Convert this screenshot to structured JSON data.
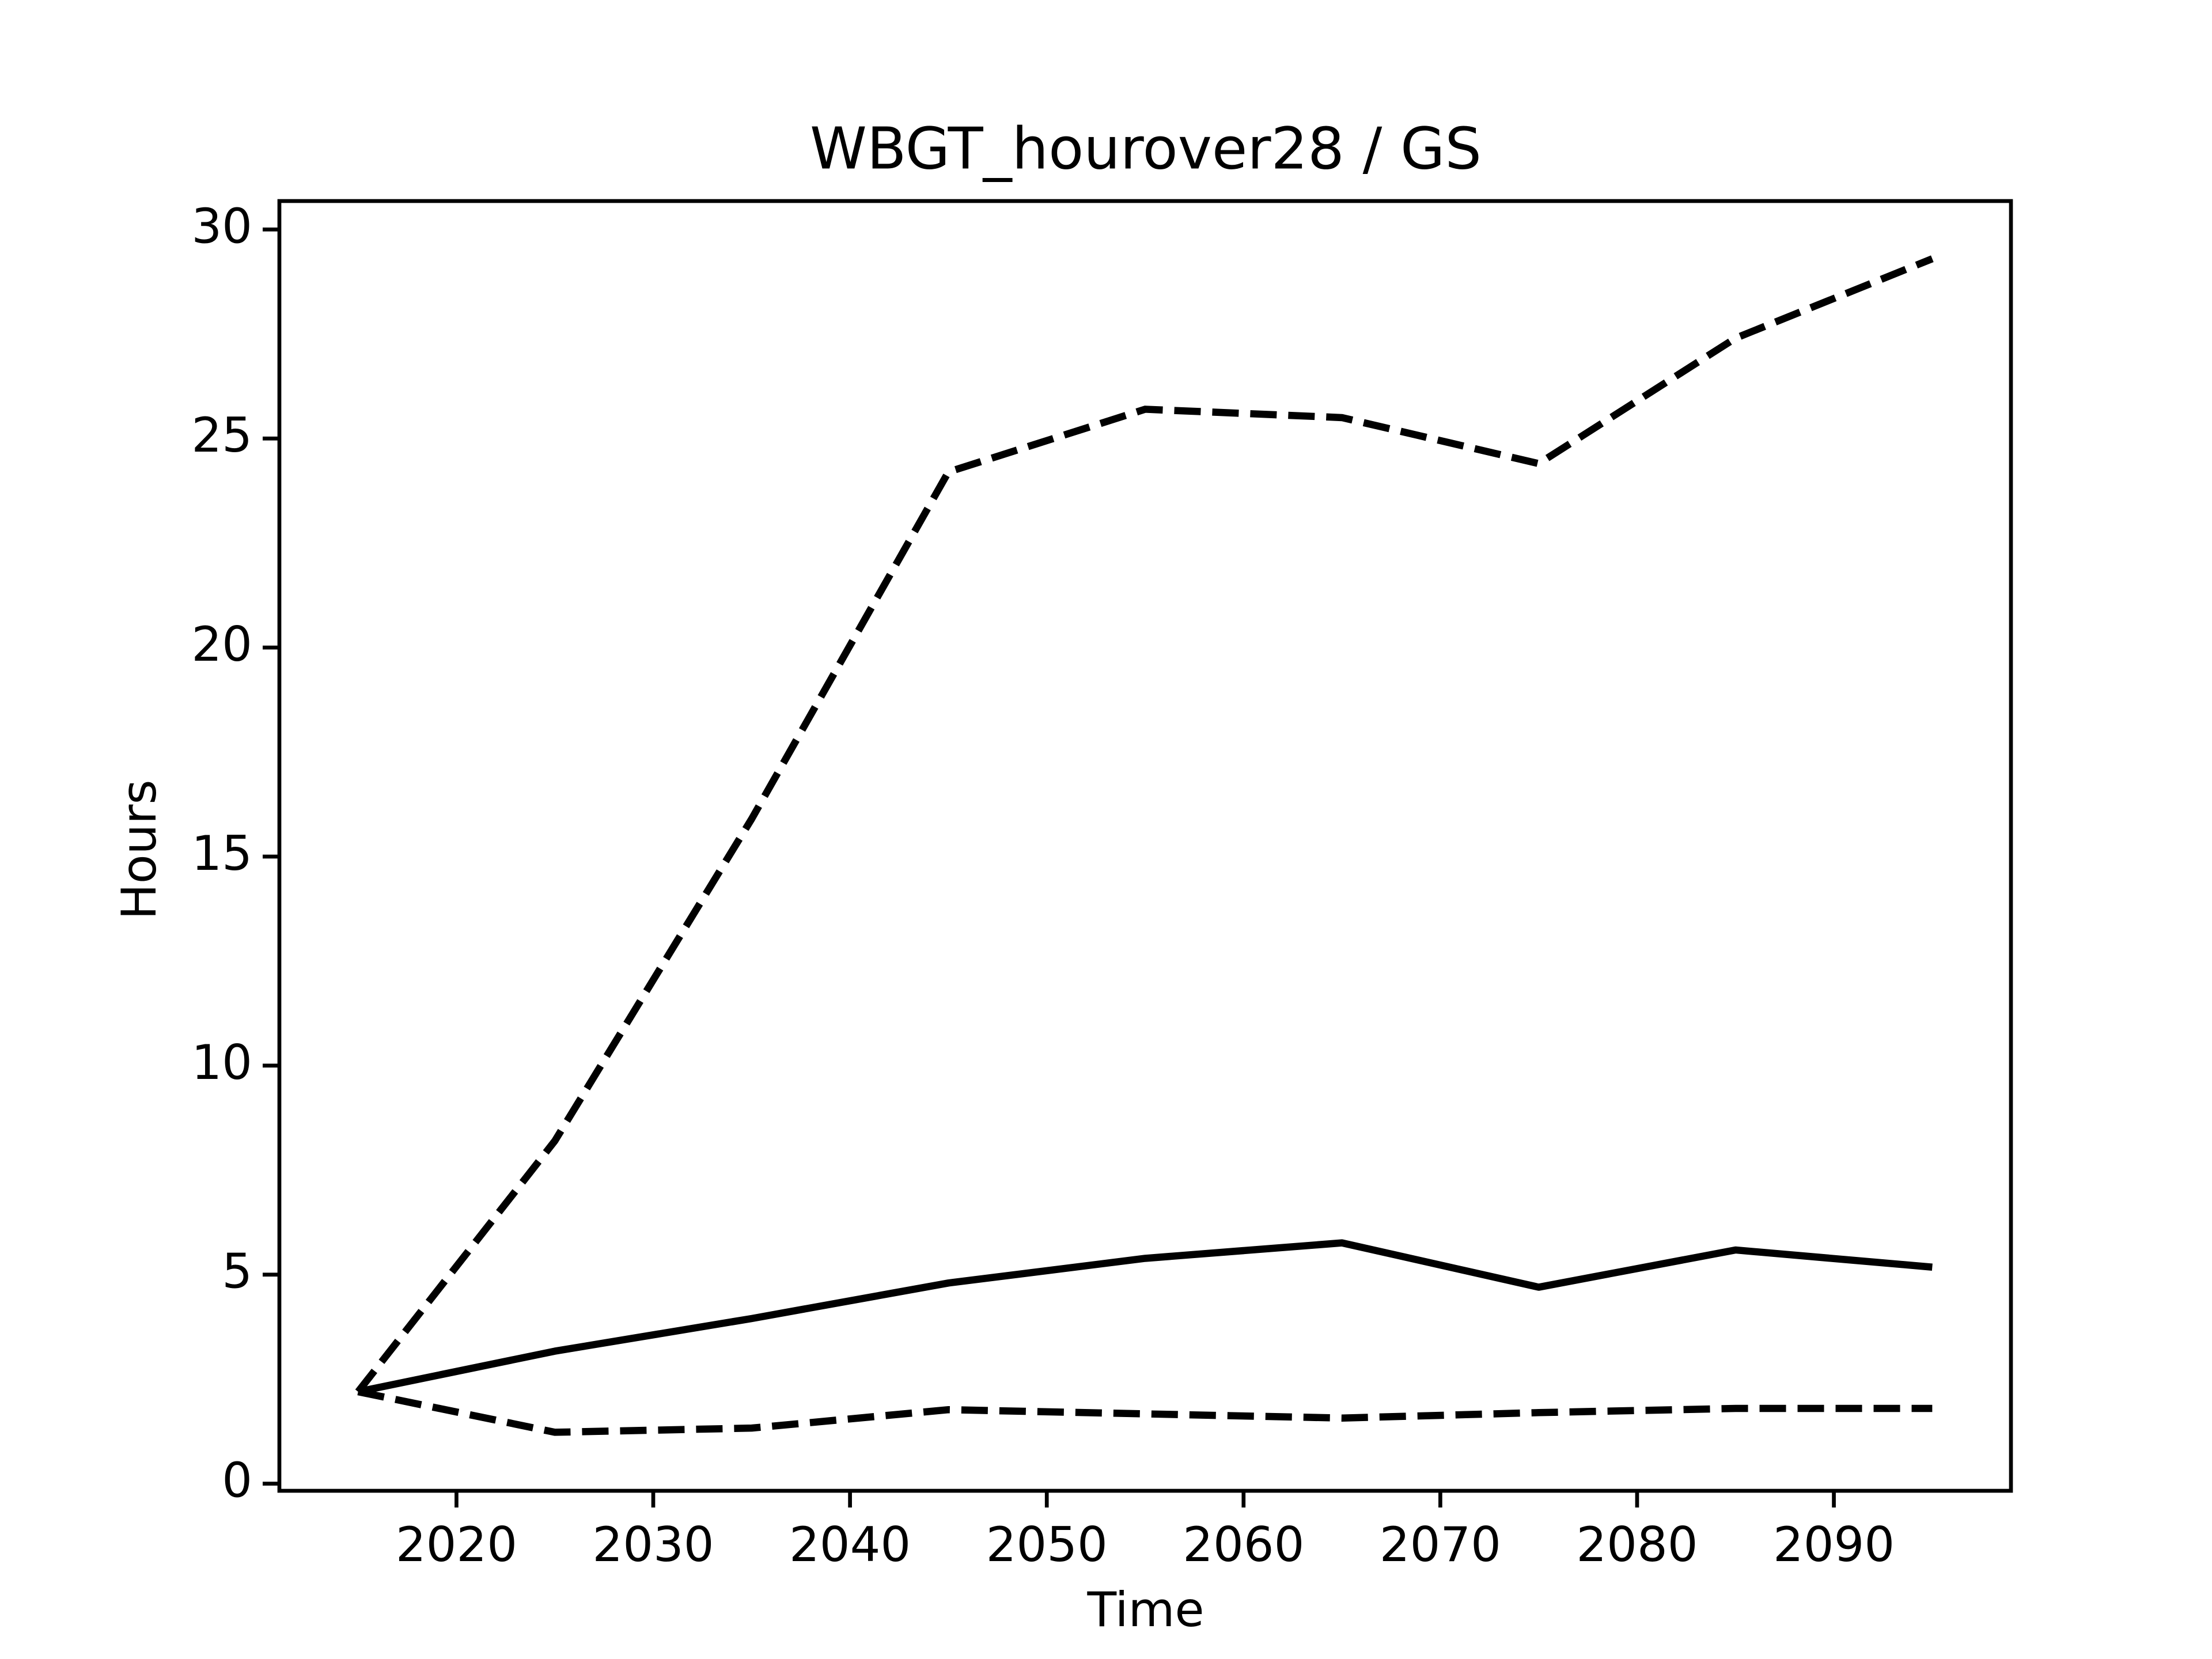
{
  "chart_data": {
    "type": "line",
    "title": "WBGT_hourover28 / GS",
    "xlabel": "Time",
    "ylabel": "Hours",
    "x": [
      2015,
      2025,
      2035,
      2045,
      2055,
      2065,
      2075,
      2085,
      2095
    ],
    "series": [
      {
        "color": "#000000",
        "linestyle": "solid",
        "values": [
          2.2,
          3.17,
          3.95,
          4.8,
          5.39,
          5.76,
          4.7,
          5.59,
          5.18
        ]
      },
      {
        "color": "#000000",
        "linestyle": "dashed",
        "values": [
          2.2,
          8.2,
          15.9,
          24.2,
          25.7,
          25.5,
          24.4,
          27.4,
          29.3
        ]
      },
      {
        "color": "#000000",
        "linestyle": "dashed",
        "values": [
          2.2,
          1.23,
          1.33,
          1.77,
          1.67,
          1.57,
          1.7,
          1.8,
          1.8
        ]
      }
    ],
    "xlim": [
      2011,
      2099
    ],
    "xticks": [
      2020,
      2030,
      2040,
      2050,
      2060,
      2070,
      2080,
      2090
    ],
    "ylim": [
      -0.17,
      30.68
    ],
    "yticks": [
      0,
      5,
      10,
      15,
      20,
      25,
      30
    ],
    "grid": false
  }
}
